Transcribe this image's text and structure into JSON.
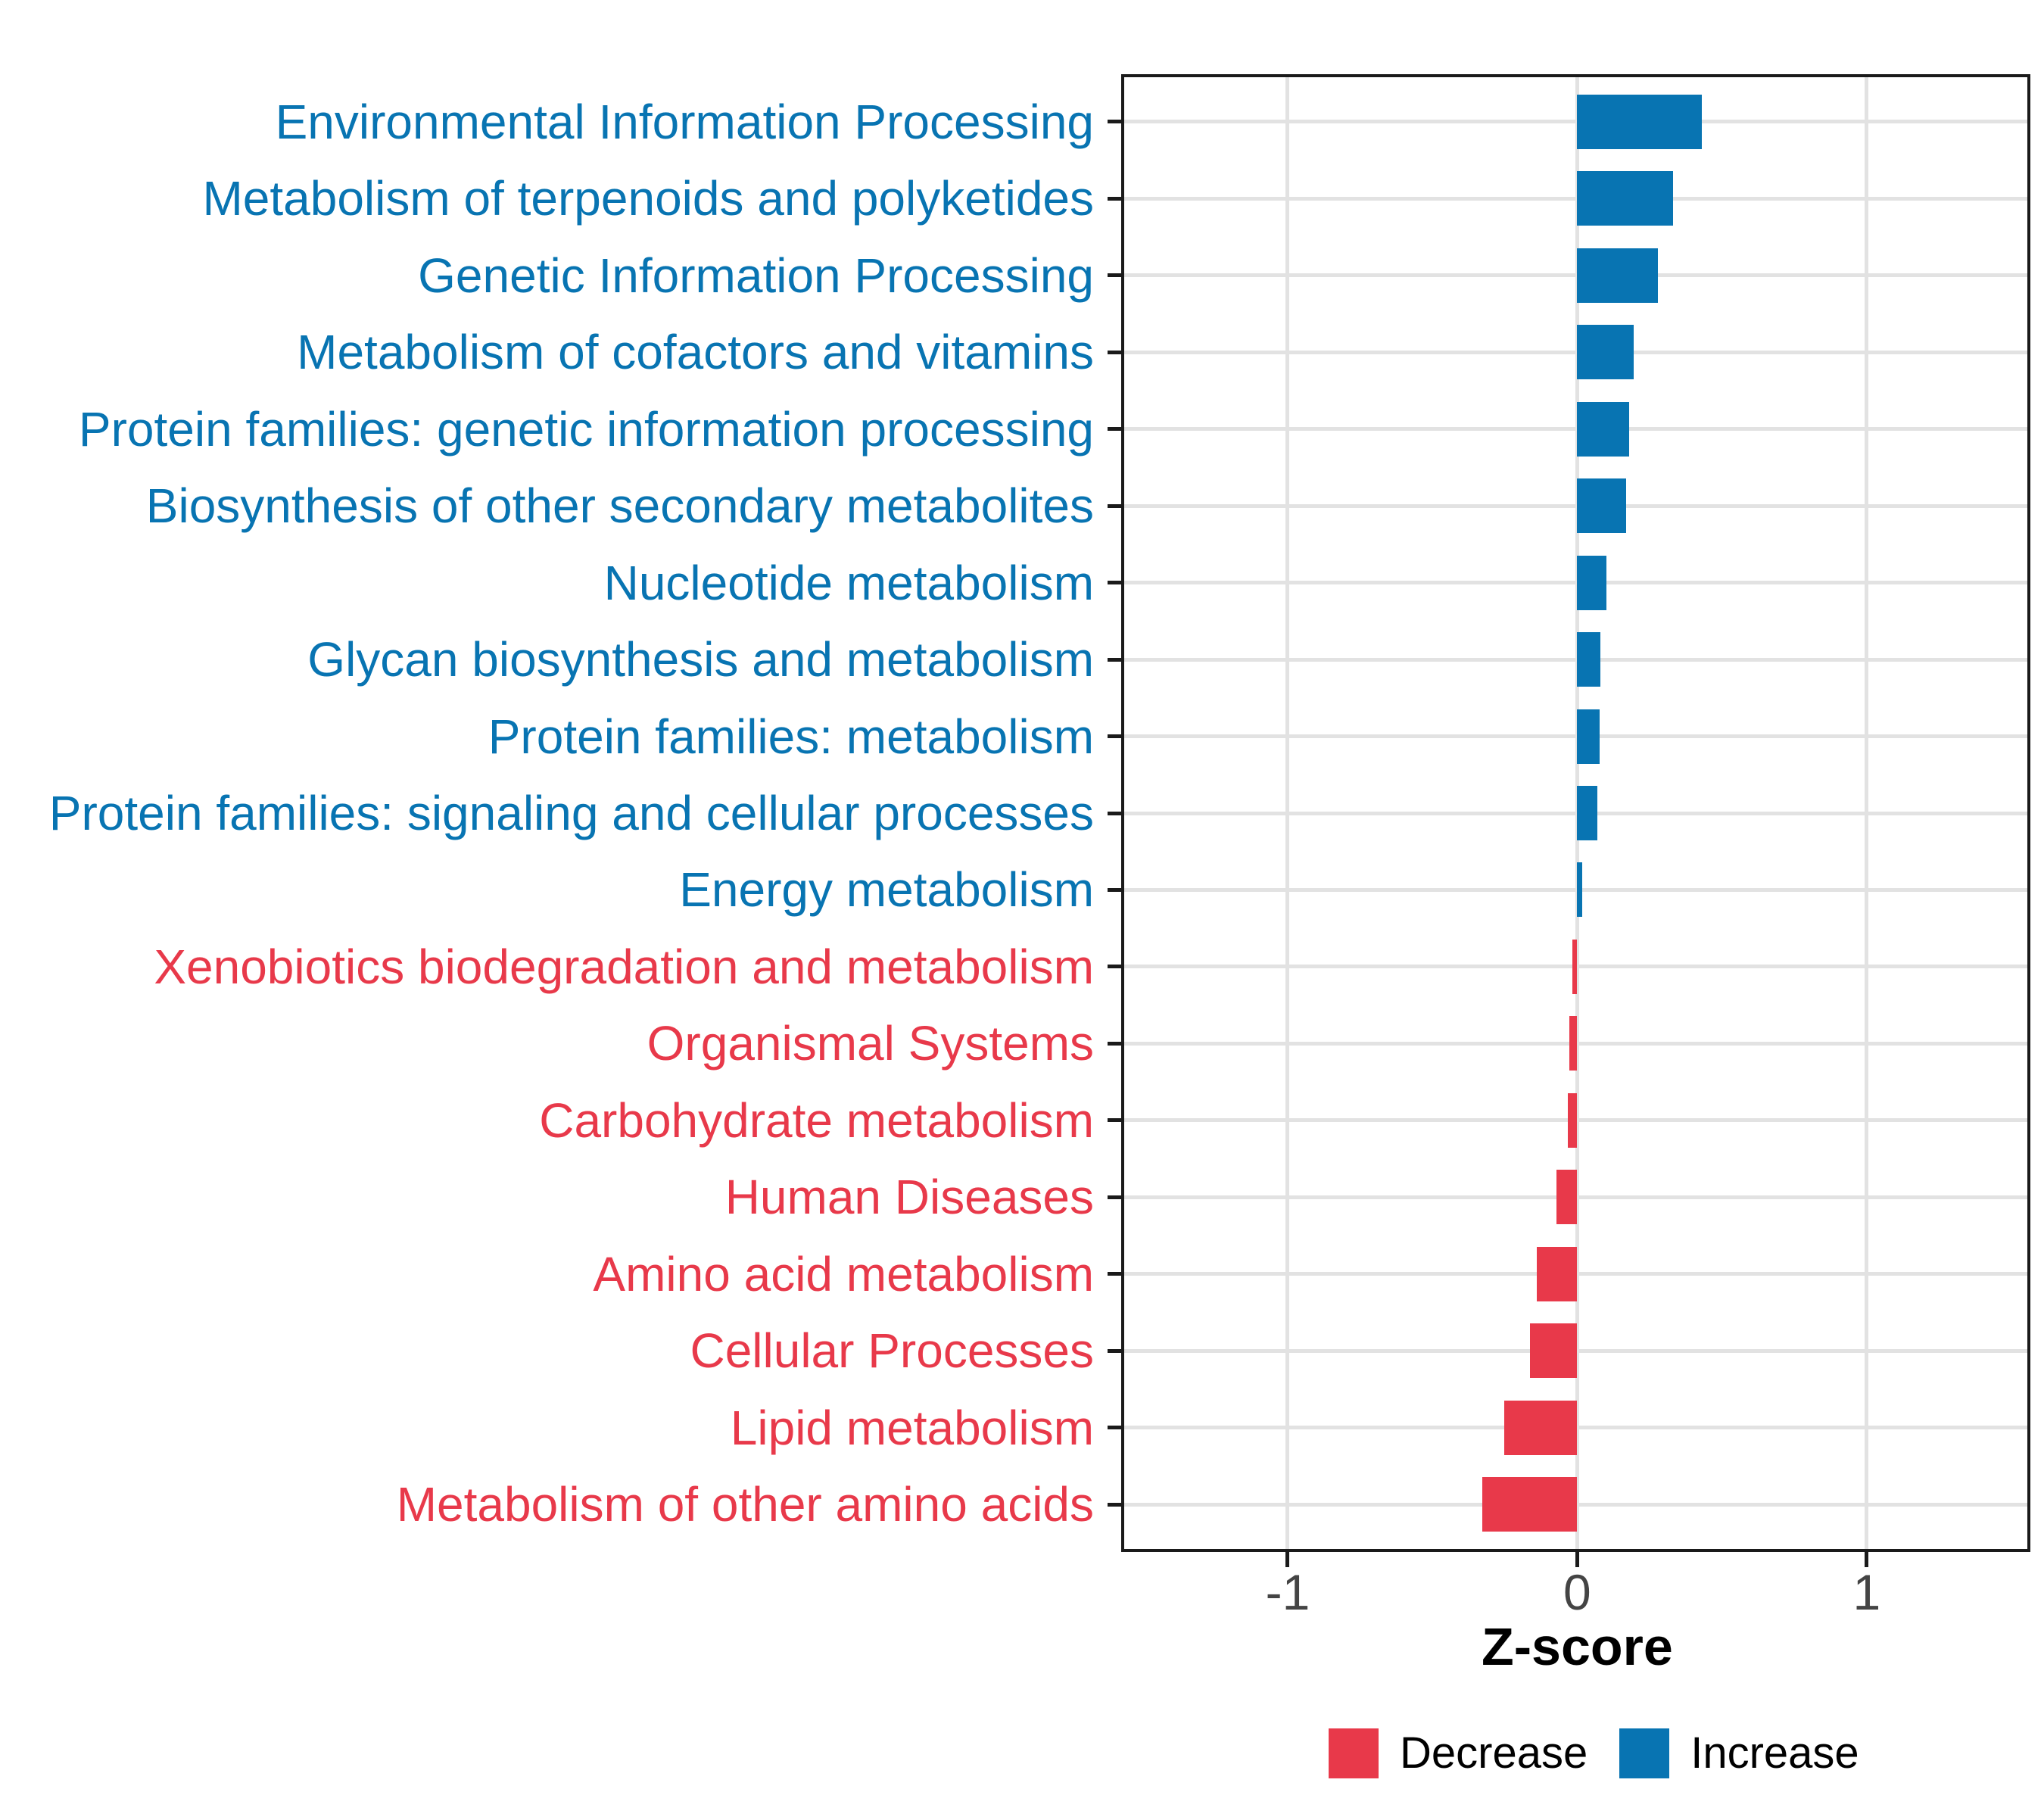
{
  "chart_data": {
    "type": "bar",
    "orientation": "horizontal",
    "title": "",
    "xlabel": "Z-score",
    "ylabel": "",
    "xlim": [
      -1.57,
      1.56
    ],
    "x_ticks": [
      -1,
      0,
      1
    ],
    "grid": "major x gridlines at -1/0/1 and one horizontal gridline per category, light gray, white panel with black border",
    "legend_position": "bottom-right below plot",
    "categories": [
      {
        "label": "Environmental Information Processing",
        "value": 0.43,
        "group": "Increase"
      },
      {
        "label": "Metabolism of terpenoids and polyketides",
        "value": 0.33,
        "group": "Increase"
      },
      {
        "label": "Genetic Information Processing",
        "value": 0.28,
        "group": "Increase"
      },
      {
        "label": "Metabolism of cofactors and vitamins",
        "value": 0.195,
        "group": "Increase"
      },
      {
        "label": "Protein families: genetic information processing",
        "value": 0.18,
        "group": "Increase"
      },
      {
        "label": "Biosynthesis of other secondary metabolites",
        "value": 0.17,
        "group": "Increase"
      },
      {
        "label": "Nucleotide metabolism",
        "value": 0.1,
        "group": "Increase"
      },
      {
        "label": "Glycan biosynthesis and metabolism",
        "value": 0.081,
        "group": "Increase"
      },
      {
        "label": "Protein families: metabolism",
        "value": 0.078,
        "group": "Increase"
      },
      {
        "label": "Protein families: signaling and cellular processes",
        "value": 0.07,
        "group": "Increase"
      },
      {
        "label": "Energy metabolism",
        "value": 0.016,
        "group": "Increase"
      },
      {
        "label": "Xenobiotics biodegradation and metabolism",
        "value": -0.018,
        "group": "Decrease"
      },
      {
        "label": "Organismal Systems",
        "value": -0.026,
        "group": "Decrease"
      },
      {
        "label": "Carbohydrate metabolism",
        "value": -0.033,
        "group": "Decrease"
      },
      {
        "label": "Human Diseases",
        "value": -0.072,
        "group": "Decrease"
      },
      {
        "label": "Amino acid metabolism",
        "value": -0.14,
        "group": "Decrease"
      },
      {
        "label": "Cellular Processes",
        "value": -0.162,
        "group": "Decrease"
      },
      {
        "label": "Lipid metabolism",
        "value": -0.253,
        "group": "Decrease"
      },
      {
        "label": "Metabolism of other amino acids",
        "value": -0.328,
        "group": "Decrease"
      }
    ],
    "legend": [
      {
        "label": "Decrease",
        "color": "#E8394A"
      },
      {
        "label": "Increase",
        "color": "#0874B2"
      }
    ],
    "colors": {
      "Increase": "#0874B2",
      "Decrease": "#E8394A",
      "gridline": "#E2E2E2",
      "panel_border": "#1A1A1A",
      "tick_label": "#444444",
      "axis_title": "#000000"
    }
  }
}
